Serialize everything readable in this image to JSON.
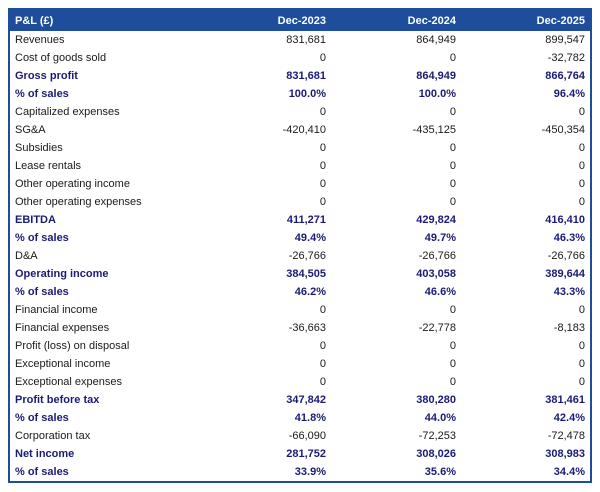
{
  "colors": {
    "header_bg": "#1d4d9b",
    "border": "#1d4d9b",
    "emphasis_text": "#1b1b77",
    "body_text": "#1a1a1a"
  },
  "chart_data": {
    "type": "table",
    "title": "P&L (£)",
    "columns": [
      "Dec-2023",
      "Dec-2024",
      "Dec-2025"
    ],
    "rows": [
      {
        "label": "Revenues",
        "values": [
          "831,681",
          "864,949",
          "899,547"
        ],
        "emphasis": false
      },
      {
        "label": "Cost of goods sold",
        "values": [
          "0",
          "0",
          "-32,782"
        ],
        "emphasis": false
      },
      {
        "label": "Gross profit",
        "values": [
          "831,681",
          "864,949",
          "866,764"
        ],
        "emphasis": true
      },
      {
        "label": "% of sales",
        "values": [
          "100.0%",
          "100.0%",
          "96.4%"
        ],
        "emphasis": true
      },
      {
        "label": "Capitalized expenses",
        "values": [
          "0",
          "0",
          "0"
        ],
        "emphasis": false
      },
      {
        "label": "SG&A",
        "values": [
          "-420,410",
          "-435,125",
          "-450,354"
        ],
        "emphasis": false
      },
      {
        "label": "Subsidies",
        "values": [
          "0",
          "0",
          "0"
        ],
        "emphasis": false
      },
      {
        "label": "Lease rentals",
        "values": [
          "0",
          "0",
          "0"
        ],
        "emphasis": false
      },
      {
        "label": "Other operating income",
        "values": [
          "0",
          "0",
          "0"
        ],
        "emphasis": false
      },
      {
        "label": "Other operating expenses",
        "values": [
          "0",
          "0",
          "0"
        ],
        "emphasis": false
      },
      {
        "label": "EBITDA",
        "values": [
          "411,271",
          "429,824",
          "416,410"
        ],
        "emphasis": true
      },
      {
        "label": "% of sales",
        "values": [
          "49.4%",
          "49.7%",
          "46.3%"
        ],
        "emphasis": true
      },
      {
        "label": "D&A",
        "values": [
          "-26,766",
          "-26,766",
          "-26,766"
        ],
        "emphasis": false
      },
      {
        "label": "Operating income",
        "values": [
          "384,505",
          "403,058",
          "389,644"
        ],
        "emphasis": true
      },
      {
        "label": "% of sales",
        "values": [
          "46.2%",
          "46.6%",
          "43.3%"
        ],
        "emphasis": true
      },
      {
        "label": "Financial income",
        "values": [
          "0",
          "0",
          "0"
        ],
        "emphasis": false
      },
      {
        "label": "Financial expenses",
        "values": [
          "-36,663",
          "-22,778",
          "-8,183"
        ],
        "emphasis": false
      },
      {
        "label": "Profit (loss) on disposal",
        "values": [
          "0",
          "0",
          "0"
        ],
        "emphasis": false
      },
      {
        "label": "Exceptional income",
        "values": [
          "0",
          "0",
          "0"
        ],
        "emphasis": false
      },
      {
        "label": "Exceptional expenses",
        "values": [
          "0",
          "0",
          "0"
        ],
        "emphasis": false
      },
      {
        "label": "Profit before tax",
        "values": [
          "347,842",
          "380,280",
          "381,461"
        ],
        "emphasis": true
      },
      {
        "label": "% of sales",
        "values": [
          "41.8%",
          "44.0%",
          "42.4%"
        ],
        "emphasis": true
      },
      {
        "label": "Corporation tax",
        "values": [
          "-66,090",
          "-72,253",
          "-72,478"
        ],
        "emphasis": false
      },
      {
        "label": "Net income",
        "values": [
          "281,752",
          "308,026",
          "308,983"
        ],
        "emphasis": true
      },
      {
        "label": "% of sales",
        "values": [
          "33.9%",
          "35.6%",
          "34.4%"
        ],
        "emphasis": true
      }
    ]
  }
}
